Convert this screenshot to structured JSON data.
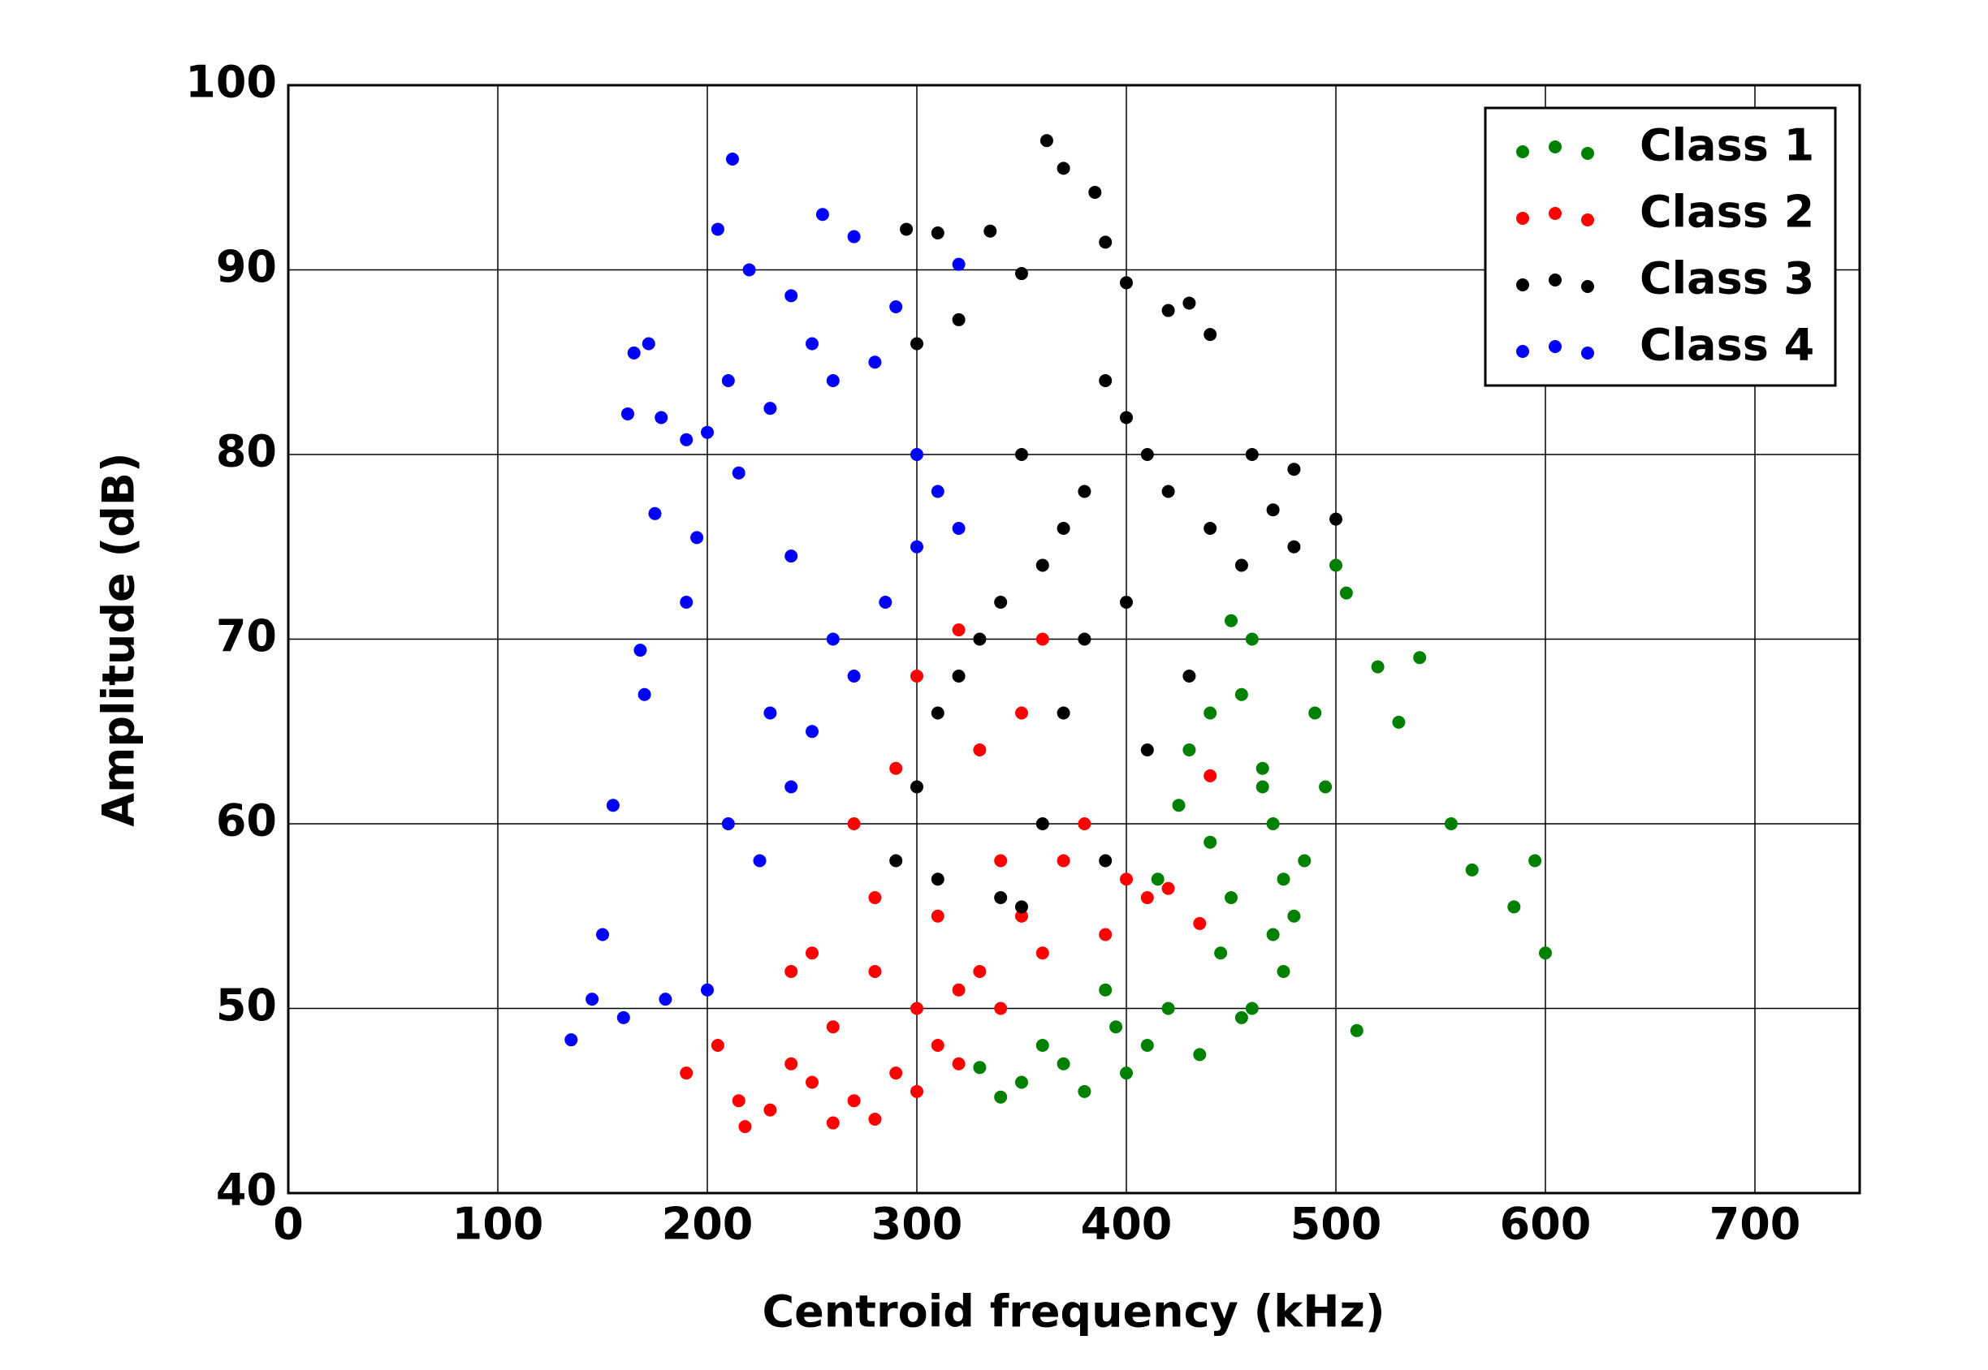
{
  "chart_data": {
    "type": "scatter",
    "x_label": "Centroid frequency   (kHz)",
    "y_label": "Amplitude (dB)",
    "xlim": [
      0,
      750
    ],
    "xticks": [
      0,
      100,
      200,
      300,
      400,
      500,
      600,
      700
    ],
    "ylim": [
      40,
      100
    ],
    "yticks": [
      40,
      50,
      60,
      70,
      80,
      90,
      100
    ],
    "grid": true,
    "legend": "upper right",
    "series": [
      {
        "name": "Class 1",
        "color": "#008000",
        "x": [
          600,
          595,
          585,
          565,
          555,
          540,
          530,
          520,
          510,
          505,
          500,
          495,
          490,
          485,
          480,
          475,
          470,
          465,
          460,
          455,
          450,
          445,
          440,
          435,
          430,
          425,
          420,
          415,
          410,
          400,
          395,
          390,
          380,
          370,
          360,
          350,
          340,
          330,
          470,
          460,
          450,
          440,
          455,
          465,
          475
        ],
        "values": [
          53,
          58,
          55.5,
          57.5,
          60,
          69,
          65.5,
          68.5,
          48.8,
          72.5,
          74,
          62,
          66,
          58,
          55,
          52,
          60,
          63,
          50,
          67,
          56,
          53,
          59,
          47.5,
          64,
          61,
          50,
          57,
          48,
          46.5,
          49,
          51,
          45.5,
          47,
          48,
          46,
          45.2,
          46.8,
          54,
          70,
          71,
          66,
          49.5,
          62,
          57
        ]
      },
      {
        "name": "Class 2",
        "color": "#ff0000",
        "x": [
          218,
          205,
          190,
          215,
          230,
          240,
          250,
          260,
          270,
          280,
          290,
          300,
          310,
          320,
          330,
          340,
          350,
          360,
          370,
          380,
          390,
          400,
          410,
          420,
          435,
          440,
          300,
          280,
          260,
          320,
          340,
          290,
          310,
          270,
          250,
          330,
          350,
          300,
          280,
          360,
          320,
          240
        ],
        "values": [
          43.6,
          48,
          46.5,
          45,
          44.5,
          47,
          46,
          43.8,
          45,
          44,
          46.5,
          45.5,
          48,
          47,
          52,
          50,
          55,
          53,
          58,
          60,
          54,
          57,
          56,
          56.5,
          54.6,
          62.6,
          50,
          52,
          49,
          51,
          58,
          63,
          55,
          60,
          53,
          64,
          66,
          68,
          56,
          70,
          70.5,
          52
        ]
      },
      {
        "name": "Class 3",
        "color": "#000000",
        "x": [
          362,
          370,
          385,
          390,
          295,
          310,
          335,
          350,
          320,
          300,
          400,
          420,
          430,
          440,
          460,
          480,
          500,
          480,
          470,
          455,
          440,
          420,
          410,
          400,
          390,
          380,
          370,
          360,
          350,
          340,
          330,
          320,
          310,
          300,
          290,
          380,
          400,
          410,
          360,
          340,
          390,
          370,
          430,
          350,
          310
        ],
        "values": [
          97,
          95.5,
          94.2,
          91.5,
          92.2,
          92,
          92.1,
          89.8,
          87.3,
          86,
          89.3,
          87.8,
          88.2,
          86.5,
          80,
          79.2,
          76.5,
          75,
          77,
          74,
          76,
          78,
          80,
          82,
          84,
          78,
          76,
          74,
          80,
          72,
          70,
          68,
          66,
          62,
          58,
          70,
          72,
          64,
          60,
          56,
          58,
          66,
          68,
          55.5,
          57
        ]
      },
      {
        "name": "Class 4",
        "color": "#0000ff",
        "x": [
          212,
          205,
          255,
          270,
          220,
          240,
          165,
          172,
          178,
          162,
          190,
          200,
          210,
          230,
          250,
          260,
          280,
          290,
          300,
          175,
          168,
          155,
          150,
          135,
          145,
          160,
          180,
          200,
          210,
          225,
          240,
          250,
          270,
          285,
          300,
          310,
          320,
          240,
          260,
          230,
          190,
          195,
          215,
          170,
          320
        ],
        "values": [
          96,
          92.2,
          93,
          91.8,
          90,
          88.6,
          85.5,
          86,
          82,
          82.2,
          80.8,
          81.2,
          84,
          82.5,
          86,
          84,
          85,
          88,
          80,
          76.8,
          69.4,
          61,
          54,
          48.3,
          50.5,
          49.5,
          50.5,
          51,
          60,
          58,
          62,
          65,
          68,
          72,
          75,
          78,
          76,
          74.5,
          70,
          66,
          72,
          75.5,
          79,
          67,
          90.3
        ]
      }
    ]
  }
}
